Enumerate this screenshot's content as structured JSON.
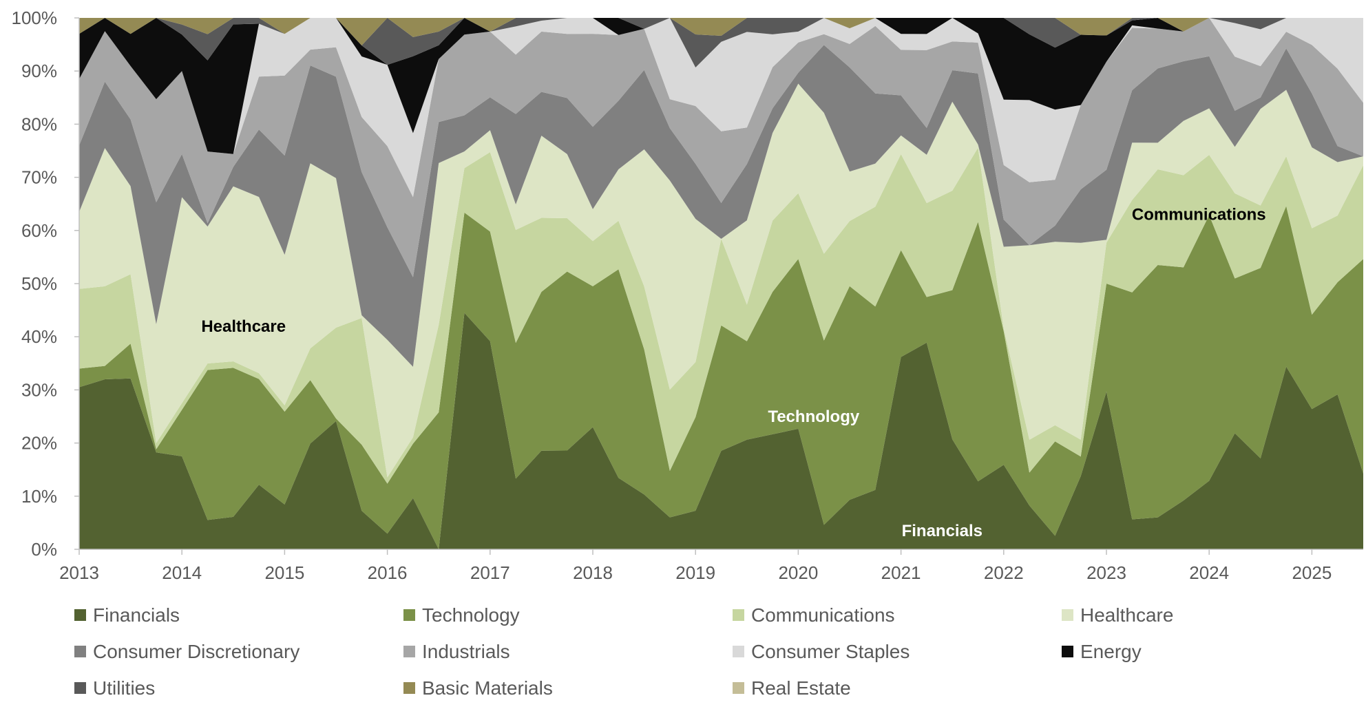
{
  "chart_data": {
    "type": "area",
    "stacked": "percent",
    "ylim": [
      0,
      100
    ],
    "yticks": [
      "0%",
      "10%",
      "20%",
      "30%",
      "40%",
      "50%",
      "60%",
      "70%",
      "80%",
      "90%",
      "100%"
    ],
    "xticks": [
      "2013",
      "2014",
      "2015",
      "2016",
      "2017",
      "2018",
      "2019",
      "2020",
      "2021",
      "2022",
      "2023",
      "2024",
      "2025"
    ],
    "xlim": [
      2013,
      2025.5
    ],
    "x": [
      2013,
      2013.25,
      2013.5,
      2013.75,
      2014,
      2014.25,
      2014.5,
      2014.75,
      2015,
      2015.25,
      2015.5,
      2015.75,
      2016,
      2016.25,
      2016.5,
      2016.75,
      2017,
      2017.25,
      2017.5,
      2017.75,
      2018,
      2018.25,
      2018.5,
      2018.75,
      2019,
      2019.25,
      2019.5,
      2019.75,
      2020,
      2020.25,
      2020.5,
      2020.75,
      2021,
      2021.25,
      2021.5,
      2021.75,
      2022,
      2022.25,
      2022.5,
      2022.75,
      2023,
      2023.25,
      2023.5,
      2023.75,
      2024,
      2024.25,
      2024.5,
      2024.75,
      2025,
      2025.25,
      2025.5
    ],
    "series": [
      {
        "name": "Financials",
        "color": "#536231",
        "values": [
          30.5,
          32,
          32,
          15.5,
          14,
          4.5,
          5,
          11,
          7,
          20,
          24,
          7,
          2.5,
          8,
          0,
          42.5,
          38,
          12.5,
          18,
          18.5,
          23,
          12.5,
          10,
          5.5,
          7,
          16.5,
          19.5,
          21,
          22,
          4.5,
          9.5,
          11,
          36,
          38.5,
          21,
          11,
          15.5,
          8,
          2.5,
          13,
          27,
          6,
          6,
          9,
          12.5,
          22.5,
          16,
          33,
          26,
          29,
          17
        ]
      },
      {
        "name": "Technology",
        "color": "#7B9148",
        "values": [
          3.5,
          2.5,
          6.5,
          0.5,
          7,
          23,
          23,
          18,
          14.5,
          12,
          0.5,
          12,
          8,
          8.5,
          25,
          18,
          20,
          24,
          29,
          33.5,
          26.5,
          36.5,
          26.5,
          8,
          17,
          21,
          17.5,
          26,
          31,
          34,
          41,
          34,
          20,
          8.5,
          28.5,
          42,
          24.5,
          6,
          17.5,
          3.5,
          18.5,
          45.5,
          47.5,
          43,
          48.5,
          30,
          33.5,
          29,
          17.5,
          21,
          48
        ]
      },
      {
        "name": "Communications",
        "color": "#C6D6A0",
        "values": [
          15,
          15,
          13,
          1,
          1,
          1,
          1,
          1,
          1,
          6,
          17,
          23,
          1,
          1,
          16,
          8,
          14.5,
          20,
          13.5,
          10,
          8.5,
          8.5,
          11.5,
          14,
          10,
          14.5,
          6.5,
          13,
          12,
          16,
          12.5,
          18.5,
          18,
          17.5,
          19,
          12,
          0.5,
          6,
          3,
          3,
          7,
          18.5,
          18,
          17,
          11,
          16.5,
          11,
          9,
          16,
          12.5,
          21
        ]
      },
      {
        "name": "Healthcare",
        "color": "#DDE5C5",
        "values": [
          14.5,
          26,
          16.5,
          19,
          31,
          21,
          27,
          30,
          23.5,
          35,
          28,
          0.5,
          22,
          11,
          29.5,
          3,
          4,
          4.5,
          15,
          12,
          6,
          9,
          25,
          36,
          26,
          0,
          15,
          16,
          20,
          26,
          9.5,
          8,
          3.5,
          9,
          17,
          0.5,
          15,
          35.5,
          34,
          35,
          0.5,
          11.5,
          5,
          10,
          8.5,
          9,
          17,
          12,
          15,
          10,
          2
        ]
      },
      {
        "name": "Consumer Discretionary",
        "color": "#808080",
        "values": [
          12.5,
          12.5,
          12.5,
          19.5,
          6.5,
          0.5,
          3,
          11.5,
          15.5,
          18.5,
          19,
          26,
          18,
          14,
          7.5,
          6.5,
          6,
          16,
          8,
          10.5,
          15.5,
          12,
          14.5,
          9,
          10,
          6,
          10,
          4.5,
          2,
          12.5,
          20,
          13,
          7.5,
          5,
          6,
          11.5,
          5,
          0,
          3,
          9.5,
          12,
          10.5,
          14,
          11,
          9.5,
          7,
          2,
          7.5,
          10,
          3,
          0
        ]
      },
      {
        "name": "Industrials",
        "color": "#A6A6A6",
        "values": [
          12.5,
          9.5,
          10,
          16.5,
          12.5,
          11,
          2,
          9,
          12.5,
          3,
          5.5,
          10,
          13,
          12.5,
          11.5,
          14.5,
          12,
          10.5,
          11,
          12,
          17.5,
          11.5,
          7.5,
          5,
          10.5,
          12,
          6.5,
          7.5,
          5.5,
          2,
          4.5,
          12.5,
          8.5,
          14.5,
          5.5,
          5,
          10,
          11.5,
          8.5,
          15,
          18.5,
          12.5,
          7.5,
          5.5,
          7,
          10.5,
          5.5,
          3,
          9,
          14.5,
          12
        ]
      },
      {
        "name": "Consumer Staples",
        "color": "#D9D9D9",
        "values": [
          0,
          0,
          0,
          0,
          0,
          0,
          0,
          9,
          6.5,
          6,
          5.5,
          11,
          13,
          10,
          0,
          0,
          0,
          5,
          2,
          3,
          3,
          0,
          0,
          14,
          7,
          15,
          17,
          6,
          2,
          3,
          3,
          1.5,
          3,
          3,
          4.5,
          1.5,
          12,
          15,
          13,
          0,
          0,
          0.5,
          0,
          0,
          0,
          6.5,
          6.5,
          2.5,
          5,
          9.5,
          19
        ]
      },
      {
        "name": "Energy",
        "color": "#0D0D0D",
        "values": [
          8.5,
          2.5,
          6,
          13,
          5.5,
          14,
          20,
          0,
          0,
          0,
          0,
          2,
          0,
          12,
          2.5,
          3,
          0,
          0,
          0,
          0,
          0,
          3,
          0,
          0,
          0,
          0,
          0,
          0,
          0,
          0,
          0,
          0,
          3,
          3,
          0,
          2.5,
          15,
          12,
          11.5,
          12.5,
          4.5,
          1,
          2,
          0,
          0,
          0,
          0,
          0,
          0,
          0,
          0
        ]
      },
      {
        "name": "Utilities",
        "color": "#595959",
        "values": [
          0,
          0,
          0,
          0,
          1.5,
          4,
          1,
          1,
          0,
          0,
          0,
          0,
          7.5,
          3,
          2.5,
          0,
          0,
          1.5,
          0.5,
          0,
          0,
          0,
          2,
          0,
          6,
          1,
          2.5,
          3,
          2.5,
          0,
          0,
          0,
          0,
          0,
          0,
          0,
          0,
          3,
          5.5,
          0,
          0,
          0.5,
          0,
          0,
          0,
          1,
          2,
          0,
          0,
          0,
          0
        ]
      },
      {
        "name": "Basic Materials",
        "color": "#948A54",
        "values": [
          3,
          0,
          3,
          0,
          1,
          2.5,
          0,
          0,
          2.5,
          0,
          0,
          5,
          0,
          3,
          2.5,
          0,
          2.5,
          0,
          0,
          0,
          0,
          0,
          0,
          0,
          3,
          3,
          0,
          0,
          0,
          0,
          2,
          0,
          0,
          0,
          0,
          0,
          0,
          0,
          0,
          3,
          3,
          0,
          0,
          2.5,
          0,
          0,
          0,
          0,
          0,
          0,
          0
        ]
      },
      {
        "name": "Real Estate",
        "color": "#C4BD97",
        "values": [
          0,
          0,
          0,
          0,
          0,
          0,
          0,
          0,
          0,
          0,
          0,
          0,
          0,
          0,
          0,
          0,
          0,
          0,
          0,
          0,
          0,
          0,
          0,
          0,
          0,
          0,
          0,
          0,
          0,
          0,
          0,
          0,
          0,
          0,
          0,
          0,
          0,
          0,
          0,
          0,
          0,
          0,
          0,
          0,
          0,
          0,
          0,
          0,
          0,
          0,
          0
        ]
      }
    ],
    "area_labels": [
      {
        "text": "Healthcare",
        "series": "Healthcare",
        "at": [
          2014.6,
          42
        ],
        "color": "#000000"
      },
      {
        "text": "Technology",
        "series": "Technology",
        "at": [
          2020.15,
          25
        ],
        "color": "#FFFFFF"
      },
      {
        "text": "Financials",
        "series": "Financials",
        "at": [
          2021.4,
          3.5
        ],
        "color": "#FFFFFF"
      },
      {
        "text": "Communications",
        "series": "Communications",
        "at": [
          2023.9,
          63
        ],
        "color": "#000000"
      }
    ],
    "legend": {
      "placement": "bottom",
      "columns": 4
    },
    "grid": false
  }
}
